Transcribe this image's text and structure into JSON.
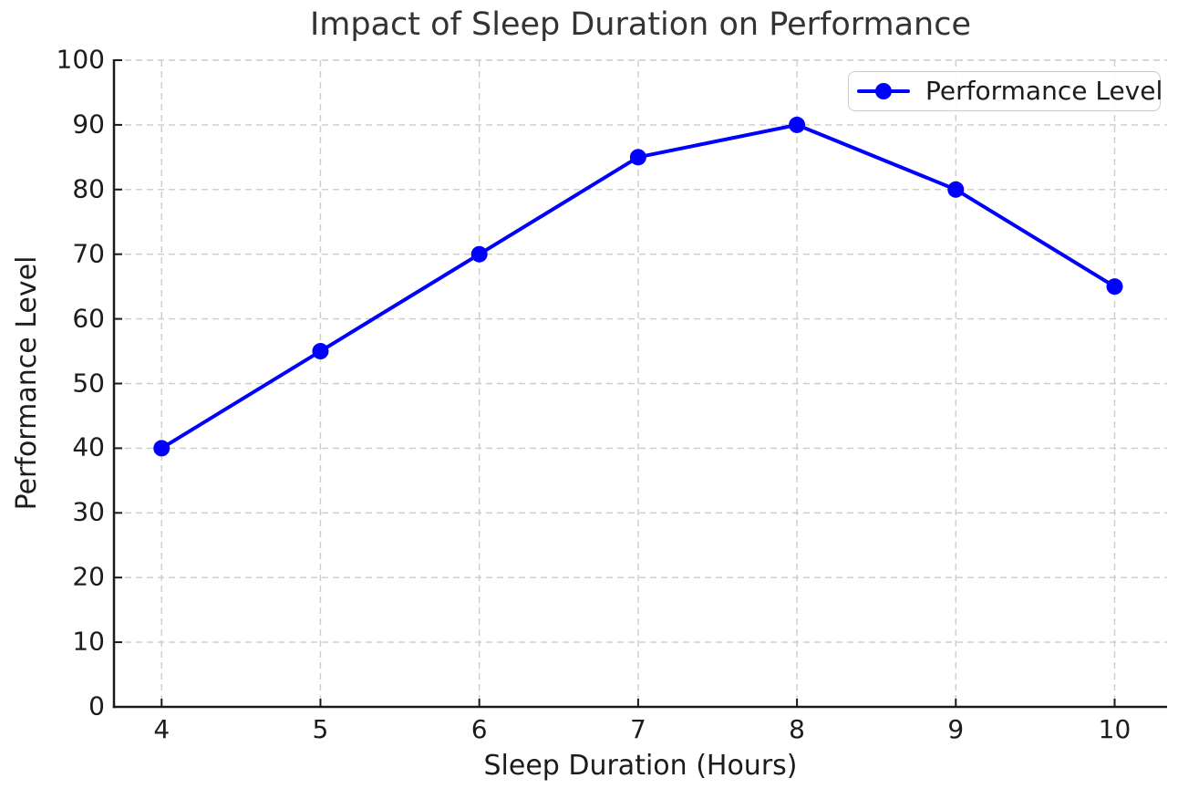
{
  "chart_data": {
    "type": "line",
    "title": "Impact of Sleep Duration on Performance",
    "xlabel": "Sleep Duration (Hours)",
    "ylabel": "Performance Level",
    "x": [
      4,
      5,
      6,
      7,
      8,
      9,
      10
    ],
    "series": [
      {
        "name": "Performance Level",
        "values": [
          40,
          55,
          70,
          85,
          90,
          80,
          65
        ],
        "color": "#0000ff",
        "marker": "circle",
        "line_style": "solid"
      }
    ],
    "xlim": [
      3.7,
      10.33
    ],
    "ylim": [
      0,
      100
    ],
    "xticks": [
      4,
      5,
      6,
      7,
      8,
      9,
      10
    ],
    "yticks": [
      0,
      10,
      20,
      30,
      40,
      50,
      60,
      70,
      80,
      90,
      100
    ],
    "grid": true,
    "grid_style": "dashed",
    "legend": {
      "position": "upper-right",
      "label": "Performance Level"
    }
  },
  "style": {
    "line_color": "#0000ff",
    "grid_color": "#cccccc",
    "spine_color": "#1a1a1a",
    "text_color": "#262626",
    "legend_border_color": "#cccccc",
    "background": "#ffffff"
  }
}
